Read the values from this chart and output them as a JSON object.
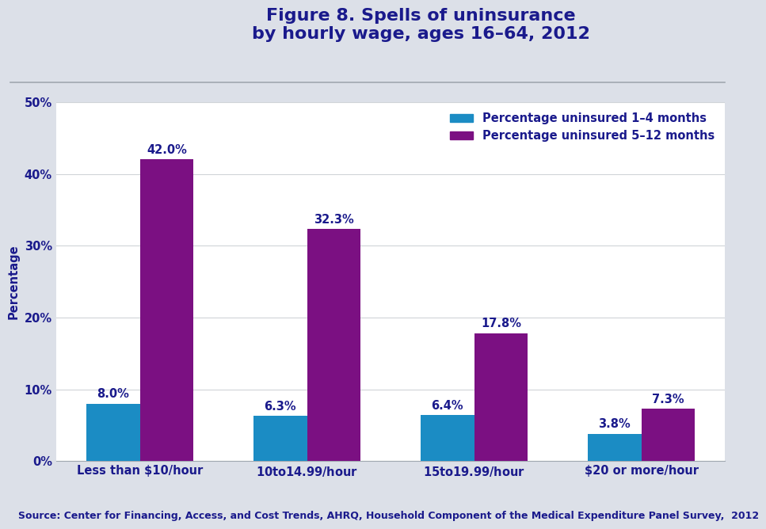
{
  "title": "Figure 8. Spells of uninsurance\nby hourly wage, ages 16–64, 2012",
  "title_color": "#1a1a8c",
  "categories": [
    "Less than $10/hour",
    "$10 to $14.99/hour",
    "$15 to $19.99/hour",
    "$20 or more/hour"
  ],
  "series1_label": "Percentage uninsured 1–4 months",
  "series2_label": "Percentage uninsured 5–12 months",
  "series1_values": [
    8.0,
    6.3,
    6.4,
    3.8
  ],
  "series2_values": [
    42.0,
    32.3,
    17.8,
    7.3
  ],
  "series1_color": "#1b8cc4",
  "series2_color": "#7b1082",
  "ylabel": "Percentage",
  "ylim": [
    0,
    50
  ],
  "yticks": [
    0,
    10,
    20,
    30,
    40,
    50
  ],
  "ytick_labels": [
    "0%",
    "10%",
    "20%",
    "30%",
    "40%",
    "50%"
  ],
  "bar_width": 0.32,
  "label_color": "#1a1a8c",
  "label_fontsize": 10.5,
  "tick_fontsize": 10.5,
  "legend_fontsize": 10.5,
  "ylabel_fontsize": 10.5,
  "source_text": "Source: Center for Financing, Access, and Cost Trends, AHRQ, Household Component of the Medical Expenditure Panel Survey,  2012",
  "source_fontsize": 9,
  "source_color": "#1a1a8c",
  "background_color": "#dce0e8",
  "plot_bg_color": "#ffffff",
  "header_sep_color": "#a0a8b0",
  "title_fontsize": 16
}
